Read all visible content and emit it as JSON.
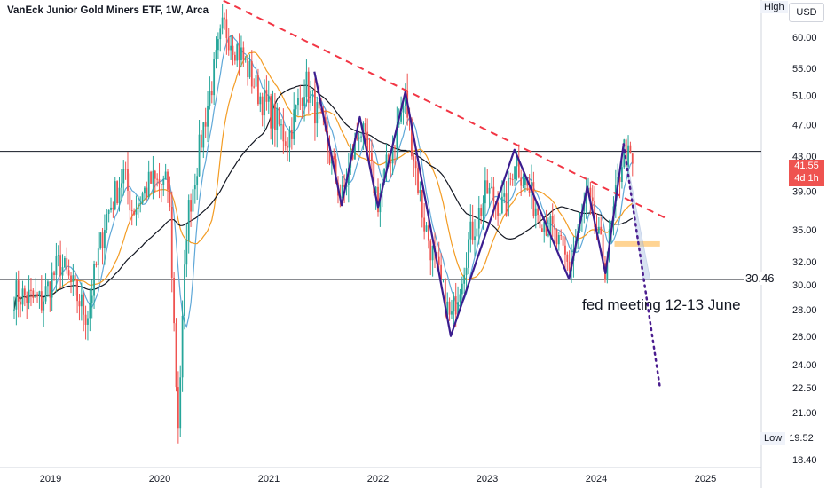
{
  "header": {
    "title": "VanEck Junior Gold Miners ETF, 1W, Arca",
    "currency": "USD"
  },
  "price_axis": {
    "high_label": "High",
    "low_label": "Low",
    "low_value": "19.52",
    "current_price": "41.55",
    "countdown": "4d 1h"
  },
  "annotations": {
    "support_level_label": "30.46",
    "note": "fed meeting 12-13 June"
  },
  "colors": {
    "up": "#26a69a",
    "down": "#ef5350",
    "trendline": "#f23645",
    "pattern": "#3b1d8f",
    "ma_blue": "#5fa8d8",
    "ma_orange": "#f39c24",
    "ma_black": "#131722",
    "zone": "#ffcc80",
    "projection": "#4b1d8f"
  },
  "chart_data": {
    "type": "candlestick",
    "title": "VanEck Junior Gold Miners ETF, 1W, Arca",
    "y_scale": "log",
    "ylim": [
      17.5,
      68
    ],
    "y_ticks": [
      "60.00",
      "55.00",
      "51.00",
      "47.00",
      "43.00",
      "39.00",
      "35.00",
      "32.00",
      "30.00",
      "28.00",
      "26.00",
      "24.00",
      "22.50",
      "21.00",
      "18.40"
    ],
    "x_ticks": [
      "2019",
      "2020",
      "2021",
      "2022",
      "2023",
      "2024",
      "2025"
    ],
    "session_high": 62.5,
    "session_low": 19.52,
    "last_price": 41.55,
    "horizontal_lines": [
      30.46,
      43.6
    ],
    "trendline": {
      "from": [
        "2020-08",
        66.5
      ],
      "to": [
        "2024-09",
        36.0
      ]
    },
    "zigzag_pattern": [
      [
        "2021-06",
        54.5
      ],
      [
        "2021-09",
        37.5
      ],
      [
        "2021-11",
        48.0
      ],
      [
        "2022-01",
        37.3
      ],
      [
        "2022-04",
        51.5
      ],
      [
        "2022-09",
        26.0
      ],
      [
        "2023-04",
        43.8
      ],
      [
        "2023-10",
        30.5
      ],
      [
        "2023-12",
        39.5
      ],
      [
        "2024-02",
        31.0
      ],
      [
        "2024-04",
        44.5
      ]
    ],
    "projection_path": [
      [
        "2024-04",
        44.5
      ],
      [
        "2024-08",
        22.5
      ]
    ],
    "support_zone": {
      "from": "2024-03",
      "to": "2024-08",
      "low": 33.4,
      "high": 33.9
    },
    "series_anchors": [
      [
        "2018-09",
        29.3
      ],
      [
        "2018-12",
        28.6
      ],
      [
        "2019-02",
        32.0
      ],
      [
        "2019-05",
        27.5
      ],
      [
        "2019-07",
        36.0
      ],
      [
        "2019-09",
        41.0
      ],
      [
        "2019-10",
        37.0
      ],
      [
        "2019-12",
        40.0
      ],
      [
        "2020-02",
        39.5
      ],
      [
        "2020-03",
        20.0
      ],
      [
        "2020-04",
        36.0
      ],
      [
        "2020-06",
        48.0
      ],
      [
        "2020-08",
        62.0
      ],
      [
        "2020-10",
        57.0
      ],
      [
        "2020-12",
        51.0
      ],
      [
        "2021-02",
        47.0
      ],
      [
        "2021-03",
        45.0
      ],
      [
        "2021-05",
        53.0
      ],
      [
        "2021-07",
        46.0
      ],
      [
        "2021-09",
        38.0
      ],
      [
        "2021-11",
        47.0
      ],
      [
        "2022-01",
        38.0
      ],
      [
        "2022-04",
        50.5
      ],
      [
        "2022-06",
        36.0
      ],
      [
        "2022-09",
        27.0
      ],
      [
        "2022-11",
        34.0
      ],
      [
        "2023-01",
        39.0
      ],
      [
        "2023-03",
        37.0
      ],
      [
        "2023-04",
        43.0
      ],
      [
        "2023-06",
        38.0
      ],
      [
        "2023-08",
        35.0
      ],
      [
        "2023-10",
        31.5
      ],
      [
        "2023-12",
        38.5
      ],
      [
        "2024-02",
        31.5
      ],
      [
        "2024-04",
        44.0
      ],
      [
        "2024-05",
        41.55
      ]
    ]
  }
}
